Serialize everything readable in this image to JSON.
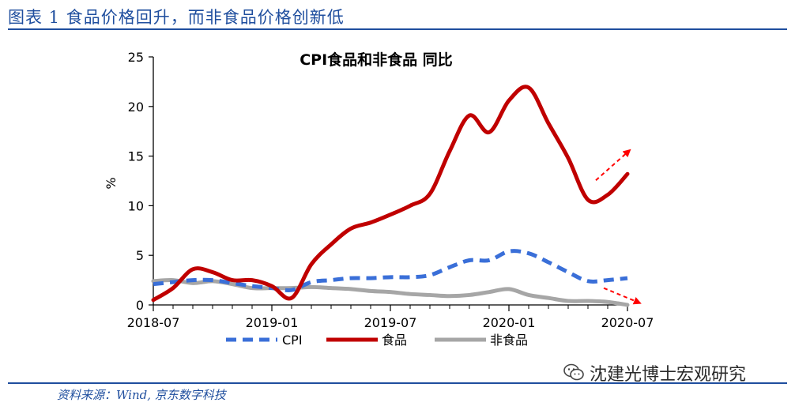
{
  "figure": {
    "title": "图表 1 食品价格回升，而非食品价格创新低",
    "source": "资料来源：Wind, 京东数字科技",
    "watermark": "沈建光博士宏观研究",
    "watermark_icon": "wechat-icon"
  },
  "chart_data": {
    "type": "line",
    "title": "CPI食品和非食品 同比",
    "ylabel": "%",
    "xlabel": "",
    "ylim": [
      0,
      25
    ],
    "yticks": [
      "0",
      "5",
      "10",
      "15",
      "20",
      "25"
    ],
    "xticks": [
      "2018-07",
      "2019-01",
      "2019-07",
      "2020-01",
      "2020-07"
    ],
    "x": [
      "2018-07",
      "2018-08",
      "2018-09",
      "2018-10",
      "2018-11",
      "2018-12",
      "2019-01",
      "2019-02",
      "2019-03",
      "2019-04",
      "2019-05",
      "2019-06",
      "2019-07",
      "2019-08",
      "2019-09",
      "2019-10",
      "2019-11",
      "2019-12",
      "2020-01",
      "2020-02",
      "2020-03",
      "2020-04",
      "2020-05",
      "2020-06",
      "2020-07"
    ],
    "series": [
      {
        "name": "CPI",
        "color": "#3a6fd8",
        "dash": true,
        "values": [
          2.1,
          2.3,
          2.5,
          2.5,
          2.2,
          1.9,
          1.7,
          1.5,
          2.3,
          2.5,
          2.7,
          2.7,
          2.8,
          2.8,
          3.0,
          3.8,
          4.5,
          4.5,
          5.4,
          5.2,
          4.3,
          3.3,
          2.4,
          2.5,
          2.7
        ]
      },
      {
        "name": "食品",
        "color": "#c00000",
        "dash": false,
        "values": [
          0.5,
          1.7,
          3.6,
          3.3,
          2.5,
          2.5,
          1.9,
          0.7,
          4.1,
          6.1,
          7.7,
          8.3,
          9.1,
          10.0,
          11.2,
          15.5,
          19.1,
          17.4,
          20.6,
          21.9,
          18.3,
          14.8,
          10.6,
          11.1,
          13.2
        ]
      },
      {
        "name": "非食品",
        "color": "#a6a6a6",
        "dash": false,
        "values": [
          2.4,
          2.5,
          2.2,
          2.4,
          2.1,
          1.7,
          1.7,
          1.7,
          1.8,
          1.7,
          1.6,
          1.4,
          1.3,
          1.1,
          1.0,
          0.9,
          1.0,
          1.3,
          1.6,
          1.0,
          0.7,
          0.4,
          0.4,
          0.3,
          0.0
        ]
      }
    ],
    "legend_position": "bottom",
    "grid": false,
    "annotations": [
      {
        "type": "arrow",
        "color": "#ff0000",
        "style": "dashed",
        "near_series": "食品",
        "direction": "up-right"
      },
      {
        "type": "arrow",
        "color": "#ff0000",
        "style": "dashed",
        "near_series": "非食品",
        "direction": "down-right"
      }
    ]
  }
}
